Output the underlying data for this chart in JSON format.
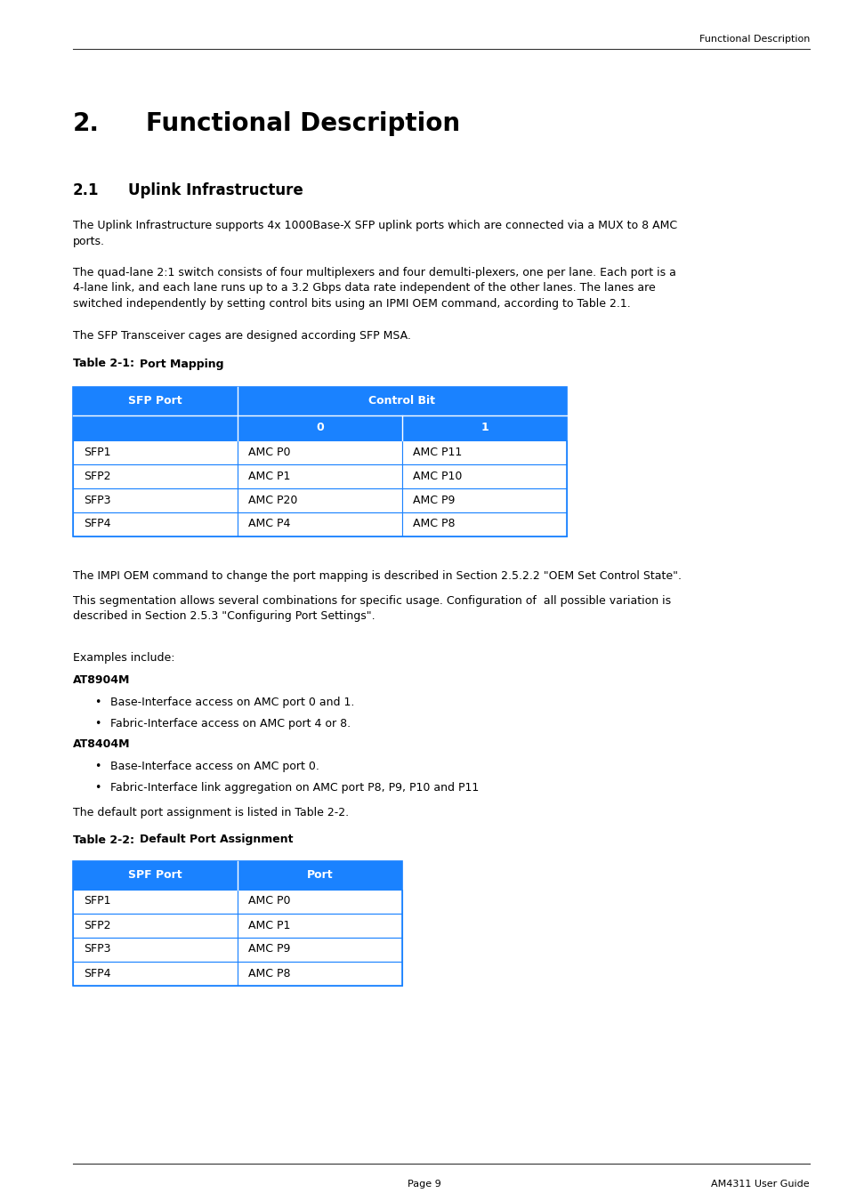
{
  "page_header_text": "Functional Description",
  "chapter_number": "2.",
  "chapter_title": "Functional Description",
  "section_number": "2.1",
  "section_title": "Uplink Infrastructure",
  "para1_lines": [
    "The Uplink Infrastructure supports 4x 1000Base-X SFP uplink ports which are connected via a MUX to 8 AMC",
    "ports."
  ],
  "para2_lines": [
    "The quad-lane 2:1 switch consists of four multiplexers and four demulti-plexers, one per lane. Each port is a",
    "4-lane link, and each lane runs up to a 3.2 Gbps data rate independent of the other lanes. The lanes are",
    "switched independently by setting control bits using an IPMI OEM command, according to Table 2.1."
  ],
  "para3": "The SFP Transceiver cages are designed according SFP MSA.",
  "table1_label": "Table 2-1:",
  "table1_title": "Port Mapping",
  "table1_header_bg": "#1a82ff",
  "table1_header_text_color": "#ffffff",
  "table1_border_color": "#1a82ff",
  "table1_col_headers": [
    "SFP Port",
    "Control Bit"
  ],
  "table1_sub_headers": [
    "0",
    "1"
  ],
  "table1_rows": [
    [
      "SFP1",
      "AMC P0",
      "AMC P11"
    ],
    [
      "SFP2",
      "AMC P1",
      "AMC P10"
    ],
    [
      "SFP3",
      "AMC P20",
      "AMC P9"
    ],
    [
      "SFP4",
      "AMC P4",
      "AMC P8"
    ]
  ],
  "para4": "The IMPI OEM command to change the port mapping is described in Section 2.5.2.2 \"OEM Set Control State\".",
  "para5_lines": [
    "This segmentation allows several combinations for specific usage. Configuration of  all possible variation is",
    "described in Section 2.5.3 \"Configuring Port Settings\"."
  ],
  "para6": "Examples include:",
  "model1": "AT8904M",
  "model1_bullets": [
    "Base-Interface access on AMC port 0 and 1.",
    "Fabric-Interface access on AMC port 4 or 8."
  ],
  "model2": "AT8404M",
  "model2_bullets": [
    "Base-Interface access on AMC port 0.",
    "Fabric-Interface link aggregation on AMC port P8, P9, P10 and P11"
  ],
  "para7": "The default port assignment is listed in Table 2-2.",
  "table2_label": "Table 2-2:",
  "table2_title": "Default Port Assignment",
  "table2_header_bg": "#1a82ff",
  "table2_header_text_color": "#ffffff",
  "table2_border_color": "#1a82ff",
  "table2_col_headers": [
    "SPF Port",
    "Port"
  ],
  "table2_rows": [
    [
      "SFP1",
      "AMC P0"
    ],
    [
      "SFP2",
      "AMC P1"
    ],
    [
      "SFP3",
      "AMC P9"
    ],
    [
      "SFP4",
      "AMC P8"
    ]
  ],
  "footer_page": "Page 9",
  "footer_guide": "AM4311 User Guide",
  "bg_color": "#ffffff",
  "text_color": "#000000"
}
